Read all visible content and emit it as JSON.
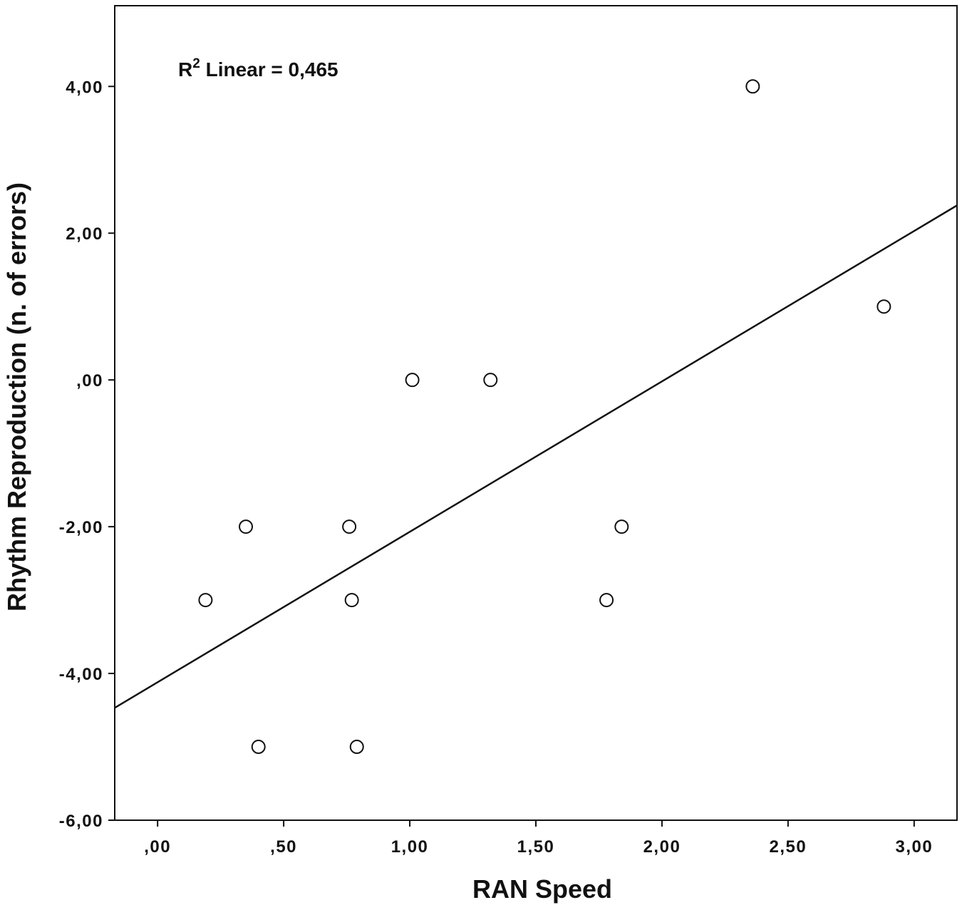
{
  "chart_data": {
    "type": "scatter",
    "title": "",
    "xlabel": "RAN Speed",
    "ylabel": "Rhythm Reproduction (n. of errors)",
    "xlim": [
      -0.17,
      3.17
    ],
    "ylim": [
      -6,
      5.1
    ],
    "x_ticks": [
      0,
      0.5,
      1,
      1.5,
      2,
      2.5,
      3
    ],
    "x_tick_labels": [
      ",00",
      ",50",
      "1,00",
      "1,50",
      "2,00",
      "2,50",
      "3,00"
    ],
    "y_ticks": [
      4,
      2,
      0,
      -2,
      -4,
      -6
    ],
    "y_tick_labels": [
      "4,00",
      "2,00",
      ",00",
      "-2,00",
      "-4,00",
      "-6,00"
    ],
    "grid": false,
    "points": [
      {
        "x": 0.19,
        "y": -3
      },
      {
        "x": 0.35,
        "y": -2
      },
      {
        "x": 0.4,
        "y": -5
      },
      {
        "x": 0.76,
        "y": -2
      },
      {
        "x": 0.77,
        "y": -3
      },
      {
        "x": 0.79,
        "y": -5
      },
      {
        "x": 1.01,
        "y": 0
      },
      {
        "x": 1.32,
        "y": 0
      },
      {
        "x": 1.78,
        "y": -3
      },
      {
        "x": 1.84,
        "y": -2
      },
      {
        "x": 2.36,
        "y": 4
      },
      {
        "x": 2.88,
        "y": 1
      }
    ],
    "fit_line": {
      "type": "linear",
      "intercept": -4.12,
      "slope": 2.05
    },
    "annotation": {
      "r_label": "R",
      "r_sup": "2",
      "text": " Linear = 0,465"
    }
  }
}
